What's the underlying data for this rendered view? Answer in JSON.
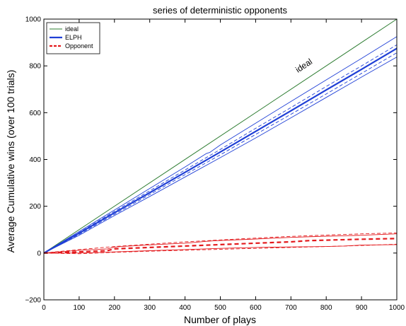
{
  "chart_data": {
    "type": "line",
    "title": "series of deterministic opponents",
    "xlabel": "Number of plays",
    "ylabel": "Average Cumulative wins (over 100 trials)",
    "xlim": [
      0,
      1000
    ],
    "ylim": [
      -200,
      1000
    ],
    "xticks": [
      "0",
      "100",
      "200",
      "300",
      "400",
      "500",
      "600",
      "700",
      "800",
      "900",
      "1000"
    ],
    "yticks": [
      "−200",
      "0",
      "200",
      "400",
      "600",
      "800",
      "1000"
    ],
    "grid": false,
    "legend_position": "top-left",
    "annotation": {
      "text": "ideal",
      "x": 720,
      "y": 770
    },
    "legend": [
      {
        "label": "ideal",
        "color": "#2e7d32",
        "style": "solid-thin"
      },
      {
        "label": "ELPH",
        "color": "#1f3fd6",
        "style": "solid-thick"
      },
      {
        "label": "Opponent",
        "color": "#e3191c",
        "style": "dashed-thick"
      }
    ],
    "series": [
      {
        "name": "ideal",
        "color": "#2e7d32",
        "width": 1,
        "dash": "",
        "x": [
          0,
          1000
        ],
        "y": [
          0,
          1000
        ]
      },
      {
        "name": "ELPH",
        "color": "#1f3fd6",
        "width": 2.2,
        "dash": "",
        "x": [
          0,
          100,
          200,
          300,
          400,
          500,
          600,
          700,
          800,
          900,
          1000
        ],
        "y": [
          0,
          85,
          172,
          258,
          345,
          432,
          520,
          608,
          697,
          785,
          875
        ]
      },
      {
        "color": "#1f3fd6",
        "width": 0.9,
        "dash": "",
        "x": [
          0,
          100,
          200,
          300,
          400,
          460,
          470,
          500,
          600,
          700,
          800,
          900,
          1000
        ],
        "y": [
          0,
          92,
          184,
          276,
          368,
          425,
          430,
          462,
          555,
          648,
          740,
          832,
          925
        ]
      },
      {
        "color": "#1f3fd6",
        "width": 0.9,
        "dash": "",
        "x": [
          0,
          100,
          200,
          300,
          400,
          500,
          600,
          700,
          800,
          900,
          1000
        ],
        "y": [
          0,
          76,
          160,
          242,
          325,
          408,
          492,
          578,
          665,
          752,
          838
        ]
      },
      {
        "color": "#1f3fd6",
        "width": 0.9,
        "dash": "5,3",
        "x": [
          0,
          100,
          200,
          300,
          400,
          500,
          600,
          700,
          800,
          900,
          1000
        ],
        "y": [
          0,
          88,
          178,
          266,
          355,
          443,
          533,
          622,
          712,
          800,
          890
        ]
      },
      {
        "color": "#1f3fd6",
        "width": 0.9,
        "dash": "5,3",
        "x": [
          0,
          100,
          200,
          300,
          400,
          500,
          600,
          700,
          800,
          900,
          1000
        ],
        "y": [
          0,
          80,
          165,
          250,
          335,
          420,
          507,
          593,
          680,
          768,
          856
        ]
      },
      {
        "name": "Opponent",
        "color": "#e3191c",
        "width": 2.2,
        "dash": "6,4",
        "x": [
          0,
          100,
          150,
          180,
          200,
          300,
          400,
          500,
          600,
          700,
          750,
          800,
          900,
          1000
        ],
        "y": [
          0,
          5,
          8,
          10,
          18,
          24,
          30,
          36,
          42,
          48,
          53,
          55,
          59,
          62
        ]
      },
      {
        "color": "#e3191c",
        "width": 0.9,
        "dash": "",
        "x": [
          0,
          100,
          180,
          200,
          220,
          300,
          400,
          460,
          480,
          600,
          700,
          800,
          850,
          900,
          1000
        ],
        "y": [
          0,
          12,
          18,
          25,
          28,
          35,
          42,
          50,
          52,
          60,
          67,
          72,
          74,
          76,
          82
        ]
      },
      {
        "color": "#e3191c",
        "width": 0.9,
        "dash": "",
        "x": [
          0,
          100,
          150,
          200,
          300,
          400,
          500,
          600,
          700,
          800,
          850,
          900,
          1000
        ],
        "y": [
          0,
          0,
          2,
          5,
          10,
          15,
          20,
          24,
          26,
          28,
          30,
          34,
          36
        ]
      },
      {
        "color": "#e3191c",
        "width": 0.9,
        "dash": "5,3",
        "x": [
          0,
          100,
          200,
          300,
          400,
          500,
          600,
          700,
          800,
          900,
          1000
        ],
        "y": [
          0,
          15,
          28,
          38,
          48,
          56,
          64,
          71,
          77,
          82,
          86
        ]
      },
      {
        "color": "#e3191c",
        "width": 0.9,
        "dash": "5,3",
        "x": [
          0,
          100,
          200,
          300,
          400,
          500,
          600,
          700,
          800,
          900,
          1000
        ],
        "y": [
          0,
          -3,
          3,
          8,
          12,
          16,
          20,
          24,
          28,
          32,
          38
        ]
      }
    ]
  }
}
